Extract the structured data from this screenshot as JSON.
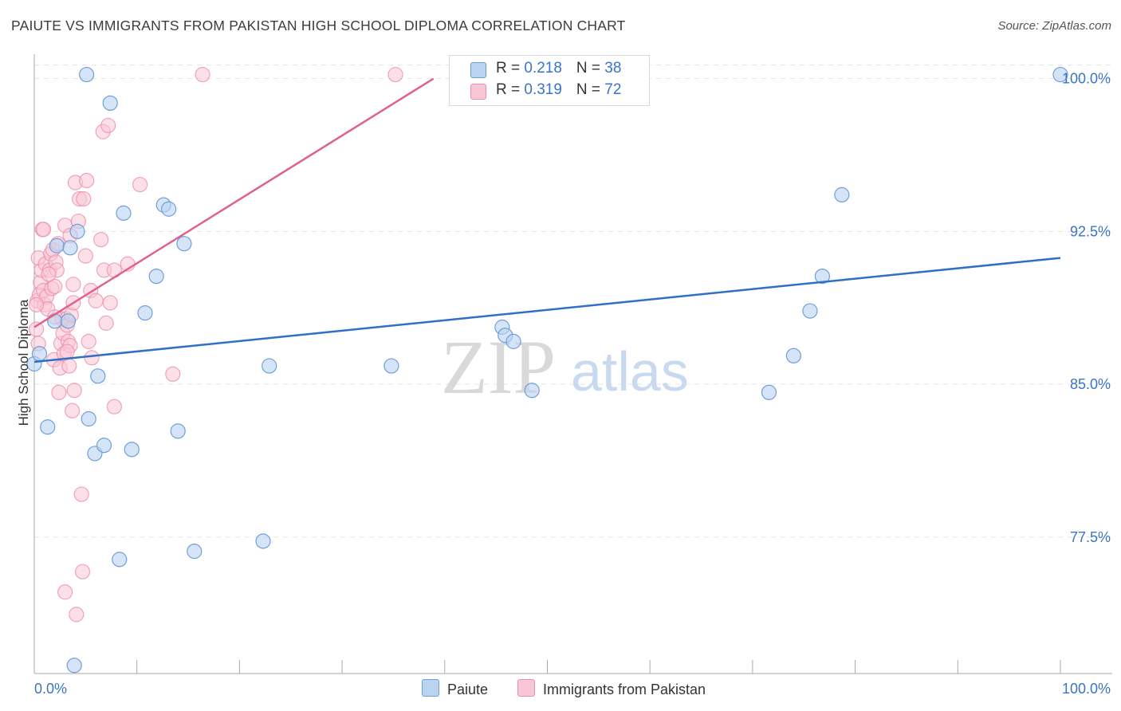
{
  "title": "PAIUTE VS IMMIGRANTS FROM PAKISTAN HIGH SCHOOL DIPLOMA CORRELATION CHART",
  "source": "Source: ZipAtlas.com",
  "watermark": {
    "zip": "ZIP",
    "atlas": "atlas"
  },
  "colors": {
    "paiute_fill": "#b9d3f1",
    "paiute_stroke": "#6f9fd8",
    "paiute_line": "#2f6fc6",
    "pakistan_fill": "#f9c6d6",
    "pakistan_stroke": "#ec8eab",
    "pakistan_line": "#e0628b",
    "axis_label": "#3a74c4",
    "grid": "#e3e3e3"
  },
  "legend_top": {
    "rows": [
      {
        "r_label": "R = ",
        "r_value": "0.218",
        "n_label": "N = ",
        "n_value": "38"
      },
      {
        "r_label": "R = ",
        "r_value": "0.319",
        "n_label": "N = ",
        "n_value": "72"
      }
    ]
  },
  "legend_bottom": {
    "paiute": "Paiute",
    "pakistan": "Immigrants from Pakistan"
  },
  "chart_data": {
    "type": "scatter",
    "title": "PAIUTE VS IMMIGRANTS FROM PAKISTAN HIGH SCHOOL DIPLOMA CORRELATION CHART",
    "xlabel": "",
    "ylabel": "High School Diploma",
    "xlim": [
      0,
      100
    ],
    "ylim": [
      70.8,
      101.2
    ],
    "x_tick_labels": [
      "0.0%",
      "100.0%"
    ],
    "y_ticks": [
      77.5,
      85.0,
      92.5,
      100.0
    ],
    "y_tick_labels": [
      "77.5%",
      "85.0%",
      "92.5%",
      "100.0%"
    ],
    "grid": true,
    "legend_position": "top-center",
    "series": [
      {
        "name": "Paiute",
        "r": 0.218,
        "n": 38,
        "trend": {
          "x": [
            0,
            100
          ],
          "y": [
            86.1,
            91.2
          ]
        },
        "points": [
          {
            "x": 0.0,
            "y": 86.0
          },
          {
            "x": 0.5,
            "y": 86.5
          },
          {
            "x": 1.3,
            "y": 82.9
          },
          {
            "x": 2.0,
            "y": 88.1
          },
          {
            "x": 2.2,
            "y": 91.8
          },
          {
            "x": 3.3,
            "y": 88.1
          },
          {
            "x": 3.5,
            "y": 91.7
          },
          {
            "x": 4.2,
            "y": 92.5
          },
          {
            "x": 5.1,
            "y": 100.2
          },
          {
            "x": 5.3,
            "y": 83.3
          },
          {
            "x": 5.9,
            "y": 81.6
          },
          {
            "x": 6.2,
            "y": 85.4
          },
          {
            "x": 6.8,
            "y": 82.0
          },
          {
            "x": 7.4,
            "y": 98.8
          },
          {
            "x": 8.3,
            "y": 76.4
          },
          {
            "x": 8.7,
            "y": 93.4
          },
          {
            "x": 9.5,
            "y": 81.8
          },
          {
            "x": 10.8,
            "y": 88.5
          },
          {
            "x": 11.9,
            "y": 90.3
          },
          {
            "x": 12.6,
            "y": 93.8
          },
          {
            "x": 13.1,
            "y": 93.6
          },
          {
            "x": 14.0,
            "y": 82.7
          },
          {
            "x": 14.6,
            "y": 91.9
          },
          {
            "x": 15.6,
            "y": 76.8
          },
          {
            "x": 22.3,
            "y": 77.3
          },
          {
            "x": 22.9,
            "y": 85.9
          },
          {
            "x": 34.8,
            "y": 85.9
          },
          {
            "x": 45.6,
            "y": 87.8
          },
          {
            "x": 45.9,
            "y": 87.4
          },
          {
            "x": 46.7,
            "y": 87.1
          },
          {
            "x": 48.5,
            "y": 84.7
          },
          {
            "x": 71.6,
            "y": 84.6
          },
          {
            "x": 74.0,
            "y": 86.4
          },
          {
            "x": 75.6,
            "y": 88.6
          },
          {
            "x": 76.8,
            "y": 90.3
          },
          {
            "x": 78.7,
            "y": 94.3
          },
          {
            "x": 100.0,
            "y": 100.2
          },
          {
            "x": 3.9,
            "y": 71.2
          }
        ]
      },
      {
        "name": "Immigrants from Pakistan",
        "r": 0.319,
        "n": 72,
        "trend": {
          "x": [
            0,
            38.9
          ],
          "y": [
            87.8,
            100.0
          ]
        },
        "points": [
          {
            "x": 0.2,
            "y": 87.7
          },
          {
            "x": 0.4,
            "y": 87.0
          },
          {
            "x": 0.3,
            "y": 89.1
          },
          {
            "x": 0.5,
            "y": 89.4
          },
          {
            "x": 0.6,
            "y": 90.0
          },
          {
            "x": 0.7,
            "y": 90.6
          },
          {
            "x": 0.4,
            "y": 91.2
          },
          {
            "x": 0.8,
            "y": 92.6
          },
          {
            "x": 0.9,
            "y": 89.6
          },
          {
            "x": 1.0,
            "y": 88.9
          },
          {
            "x": 1.1,
            "y": 90.9
          },
          {
            "x": 1.2,
            "y": 89.3
          },
          {
            "x": 1.3,
            "y": 88.7
          },
          {
            "x": 1.5,
            "y": 90.6
          },
          {
            "x": 1.6,
            "y": 91.4
          },
          {
            "x": 1.7,
            "y": 89.7
          },
          {
            "x": 1.8,
            "y": 91.6
          },
          {
            "x": 1.9,
            "y": 86.2
          },
          {
            "x": 2.0,
            "y": 89.8
          },
          {
            "x": 2.1,
            "y": 91.0
          },
          {
            "x": 2.2,
            "y": 90.6
          },
          {
            "x": 2.3,
            "y": 91.9
          },
          {
            "x": 2.4,
            "y": 84.6
          },
          {
            "x": 2.5,
            "y": 85.8
          },
          {
            "x": 2.6,
            "y": 87.0
          },
          {
            "x": 2.7,
            "y": 88.2
          },
          {
            "x": 2.8,
            "y": 87.5
          },
          {
            "x": 2.9,
            "y": 86.5
          },
          {
            "x": 3.0,
            "y": 74.8
          },
          {
            "x": 3.0,
            "y": 92.8
          },
          {
            "x": 3.1,
            "y": 88.2
          },
          {
            "x": 3.2,
            "y": 87.9
          },
          {
            "x": 3.3,
            "y": 87.1
          },
          {
            "x": 3.4,
            "y": 85.9
          },
          {
            "x": 3.5,
            "y": 86.9
          },
          {
            "x": 3.5,
            "y": 92.3
          },
          {
            "x": 3.6,
            "y": 88.4
          },
          {
            "x": 3.7,
            "y": 83.7
          },
          {
            "x": 3.8,
            "y": 89.0
          },
          {
            "x": 3.8,
            "y": 89.9
          },
          {
            "x": 3.9,
            "y": 84.7
          },
          {
            "x": 4.0,
            "y": 94.9
          },
          {
            "x": 4.1,
            "y": 73.7
          },
          {
            "x": 4.3,
            "y": 93.0
          },
          {
            "x": 4.4,
            "y": 94.1
          },
          {
            "x": 4.6,
            "y": 79.6
          },
          {
            "x": 4.7,
            "y": 75.8
          },
          {
            "x": 4.8,
            "y": 94.1
          },
          {
            "x": 5.0,
            "y": 91.3
          },
          {
            "x": 5.1,
            "y": 95.0
          },
          {
            "x": 5.3,
            "y": 87.1
          },
          {
            "x": 5.5,
            "y": 89.6
          },
          {
            "x": 5.6,
            "y": 86.3
          },
          {
            "x": 6.0,
            "y": 89.1
          },
          {
            "x": 6.5,
            "y": 92.1
          },
          {
            "x": 6.7,
            "y": 97.4
          },
          {
            "x": 6.8,
            "y": 90.6
          },
          {
            "x": 7.0,
            "y": 88.0
          },
          {
            "x": 7.2,
            "y": 97.7
          },
          {
            "x": 7.4,
            "y": 89.0
          },
          {
            "x": 7.8,
            "y": 83.9
          },
          {
            "x": 7.8,
            "y": 90.6
          },
          {
            "x": 10.3,
            "y": 94.8
          },
          {
            "x": 9.1,
            "y": 90.9
          },
          {
            "x": 13.5,
            "y": 85.5
          },
          {
            "x": 16.4,
            "y": 100.2
          },
          {
            "x": 35.2,
            "y": 100.2
          },
          {
            "x": 0.2,
            "y": 88.9
          },
          {
            "x": 1.4,
            "y": 90.4
          },
          {
            "x": 2.0,
            "y": 88.3
          },
          {
            "x": 3.2,
            "y": 86.6
          },
          {
            "x": 0.9,
            "y": 92.6
          }
        ]
      }
    ]
  }
}
